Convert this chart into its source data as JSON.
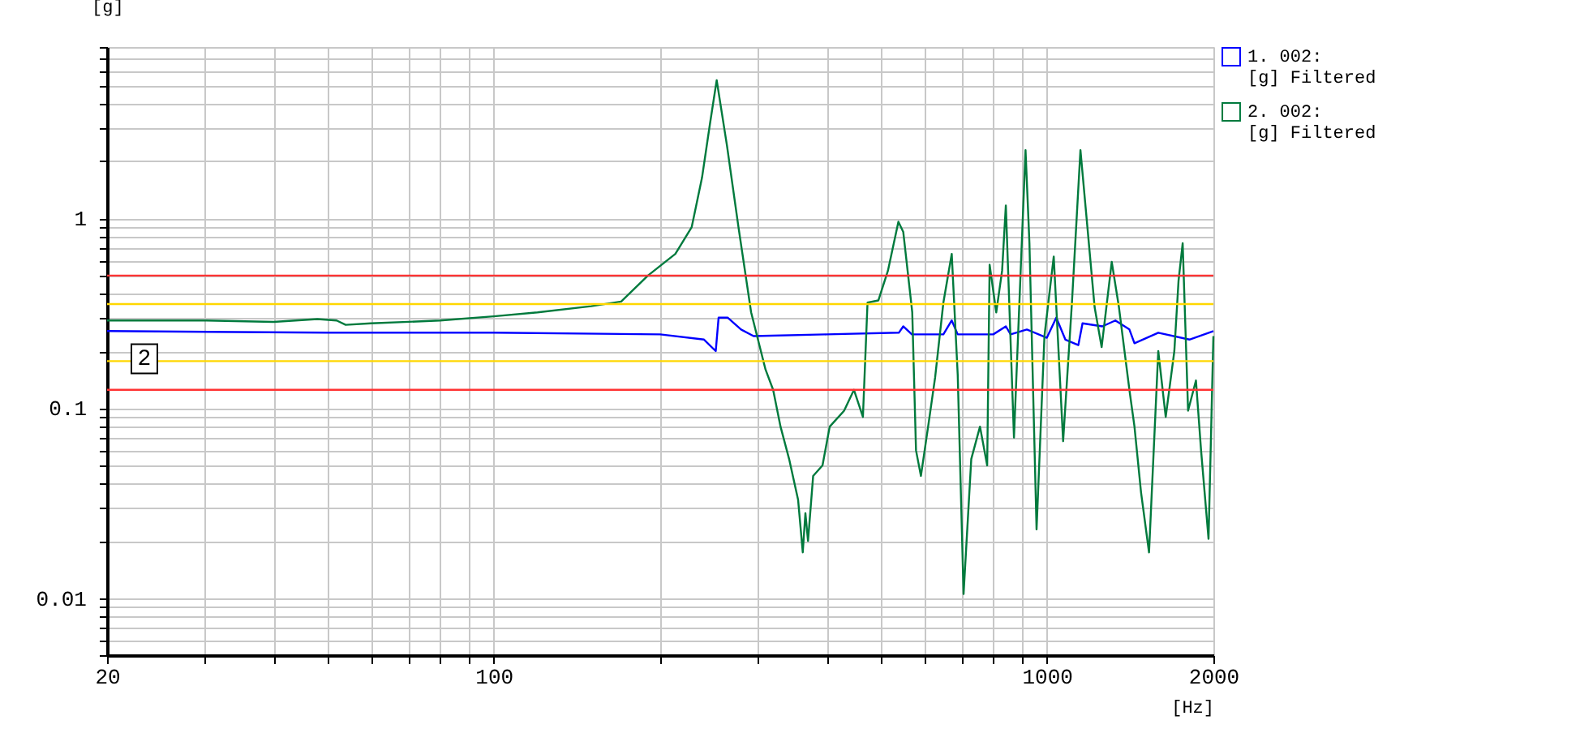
{
  "chart_data": {
    "type": "line",
    "xlabel": "[Hz]",
    "ylabel": "[g]",
    "log": "xy",
    "grid": true,
    "legend": "top right",
    "marker": "none",
    "line_style": "solid",
    "xlim": [
      20,
      2000
    ],
    "ylim": [
      0.005,
      8
    ],
    "xticks": [
      20,
      {
        "value": 30,
        "label": null
      },
      {
        "value": 40,
        "label": null
      },
      {
        "value": 50,
        "label": null
      },
      {
        "value": 60,
        "label": null
      },
      {
        "value": 70,
        "label": null
      },
      {
        "value": 80,
        "label": null
      },
      {
        "value": 90,
        "label": null
      },
      100,
      {
        "value": 200,
        "label": null
      },
      {
        "value": 300,
        "label": null
      },
      {
        "value": 400,
        "label": null
      },
      {
        "value": 500,
        "label": null
      },
      {
        "value": 600,
        "label": null
      },
      {
        "value": 700,
        "label": null
      },
      {
        "value": 800,
        "label": null
      },
      {
        "value": 900,
        "label": null
      },
      1000,
      2000
    ],
    "yticks": [
      {
        "value": 0.005,
        "label": null
      },
      {
        "value": 0.006,
        "label": null
      },
      {
        "value": 0.007,
        "label": null
      },
      {
        "value": 0.008,
        "label": null
      },
      {
        "value": 0.009,
        "label": null
      },
      0.01,
      {
        "value": 0.02,
        "label": null
      },
      {
        "value": 0.03,
        "label": null
      },
      {
        "value": 0.04,
        "label": null
      },
      {
        "value": 0.05,
        "label": null
      },
      {
        "value": 0.06,
        "label": null
      },
      {
        "value": 0.07,
        "label": null
      },
      {
        "value": 0.08,
        "label": null
      },
      {
        "value": 0.09,
        "label": null
      },
      0.1,
      {
        "value": 0.2,
        "label": null
      },
      {
        "value": 0.3,
        "label": null
      },
      {
        "value": 0.4,
        "label": null
      },
      {
        "value": 0.5,
        "label": null
      },
      {
        "value": 0.6,
        "label": null
      },
      {
        "value": 0.7,
        "label": null
      },
      {
        "value": 0.8,
        "label": null
      },
      {
        "value": 0.9,
        "label": null
      },
      1,
      {
        "value": 2,
        "label": null
      },
      {
        "value": 3,
        "label": null
      },
      {
        "value": 4,
        "label": null
      },
      {
        "value": 5,
        "label": null
      },
      {
        "value": 6,
        "label": null
      },
      {
        "value": 7,
        "label": null
      },
      {
        "value": 8,
        "label": null
      }
    ],
    "ref_lines": [
      {
        "axis": "y",
        "value": 0.5,
        "color": "#ff3333"
      },
      {
        "axis": "y",
        "value": 0.354,
        "color": "#ffd700"
      },
      {
        "axis": "y",
        "value": 0.177,
        "color": "#ffd700"
      },
      {
        "axis": "y",
        "value": 0.125,
        "color": "#ff3333"
      }
    ],
    "annotations": [
      {
        "text": "2",
        "x": 20,
        "y": 0.27
      }
    ],
    "series": [
      {
        "name": "1. 002:\n[g] Filtered",
        "color": "#0000ff",
        "x": [
          20,
          50,
          100,
          200,
          240,
          252,
          255,
          265,
          280,
          295,
          400,
          540,
          550,
          570,
          650,
          673,
          690,
          800,
          843,
          860,
          920,
          1000,
          1040,
          1080,
          1140,
          1160,
          1260,
          1330,
          1410,
          1440,
          1590,
          1810,
          2000
        ],
        "values": [
          0.255,
          0.25,
          0.25,
          0.245,
          0.23,
          0.2,
          0.3,
          0.3,
          0.26,
          0.24,
          0.245,
          0.25,
          0.27,
          0.245,
          0.245,
          0.29,
          0.245,
          0.245,
          0.27,
          0.245,
          0.26,
          0.235,
          0.3,
          0.23,
          0.215,
          0.28,
          0.27,
          0.29,
          0.26,
          0.22,
          0.25,
          0.23,
          0.255
        ]
      },
      {
        "name": "2. 002:\n[g] Filtered",
        "color": "#007a3d",
        "x": [
          20,
          30,
          40,
          48,
          52,
          54,
          60,
          80,
          100,
          120,
          150,
          170,
          190,
          213,
          228,
          238,
          246,
          253,
          264,
          277,
          292,
          310,
          320,
          330,
          342,
          355,
          362,
          366,
          370,
          378,
          393,
          405,
          430,
          448,
          465,
          474,
          496,
          516,
          539,
          550,
          571,
          580,
          592,
          610,
          628,
          650,
          673,
          690,
          707,
          730,
          757,
          780,
          788,
          810,
          830,
          843,
          872,
          915,
          930,
          958,
          990,
          1029,
          1070,
          1110,
          1150,
          1220,
          1256,
          1310,
          1350,
          1410,
          1440,
          1480,
          1530,
          1590,
          1640,
          1700,
          1730,
          1760,
          1800,
          1860,
          1900,
          1960,
          2000
        ],
        "values": [
          0.29,
          0.29,
          0.285,
          0.295,
          0.29,
          0.275,
          0.28,
          0.29,
          0.305,
          0.32,
          0.345,
          0.365,
          0.5,
          0.65,
          0.9,
          1.64,
          3.15,
          5.35,
          2.43,
          0.9,
          0.32,
          0.16,
          0.125,
          0.08,
          0.054,
          0.033,
          0.0174,
          0.028,
          0.02,
          0.044,
          0.05,
          0.08,
          0.097,
          0.125,
          0.09,
          0.36,
          0.37,
          0.53,
          0.96,
          0.85,
          0.32,
          0.06,
          0.044,
          0.08,
          0.145,
          0.36,
          0.65,
          0.15,
          0.0105,
          0.054,
          0.08,
          0.05,
          0.57,
          0.32,
          0.53,
          1.17,
          0.07,
          2.29,
          0.74,
          0.023,
          0.24,
          0.63,
          0.067,
          0.36,
          2.29,
          0.34,
          0.21,
          0.59,
          0.34,
          0.125,
          0.08,
          0.036,
          0.0174,
          0.2,
          0.09,
          0.2,
          0.47,
          0.74,
          0.097,
          0.14,
          0.06,
          0.0205,
          0.24
        ]
      }
    ]
  }
}
